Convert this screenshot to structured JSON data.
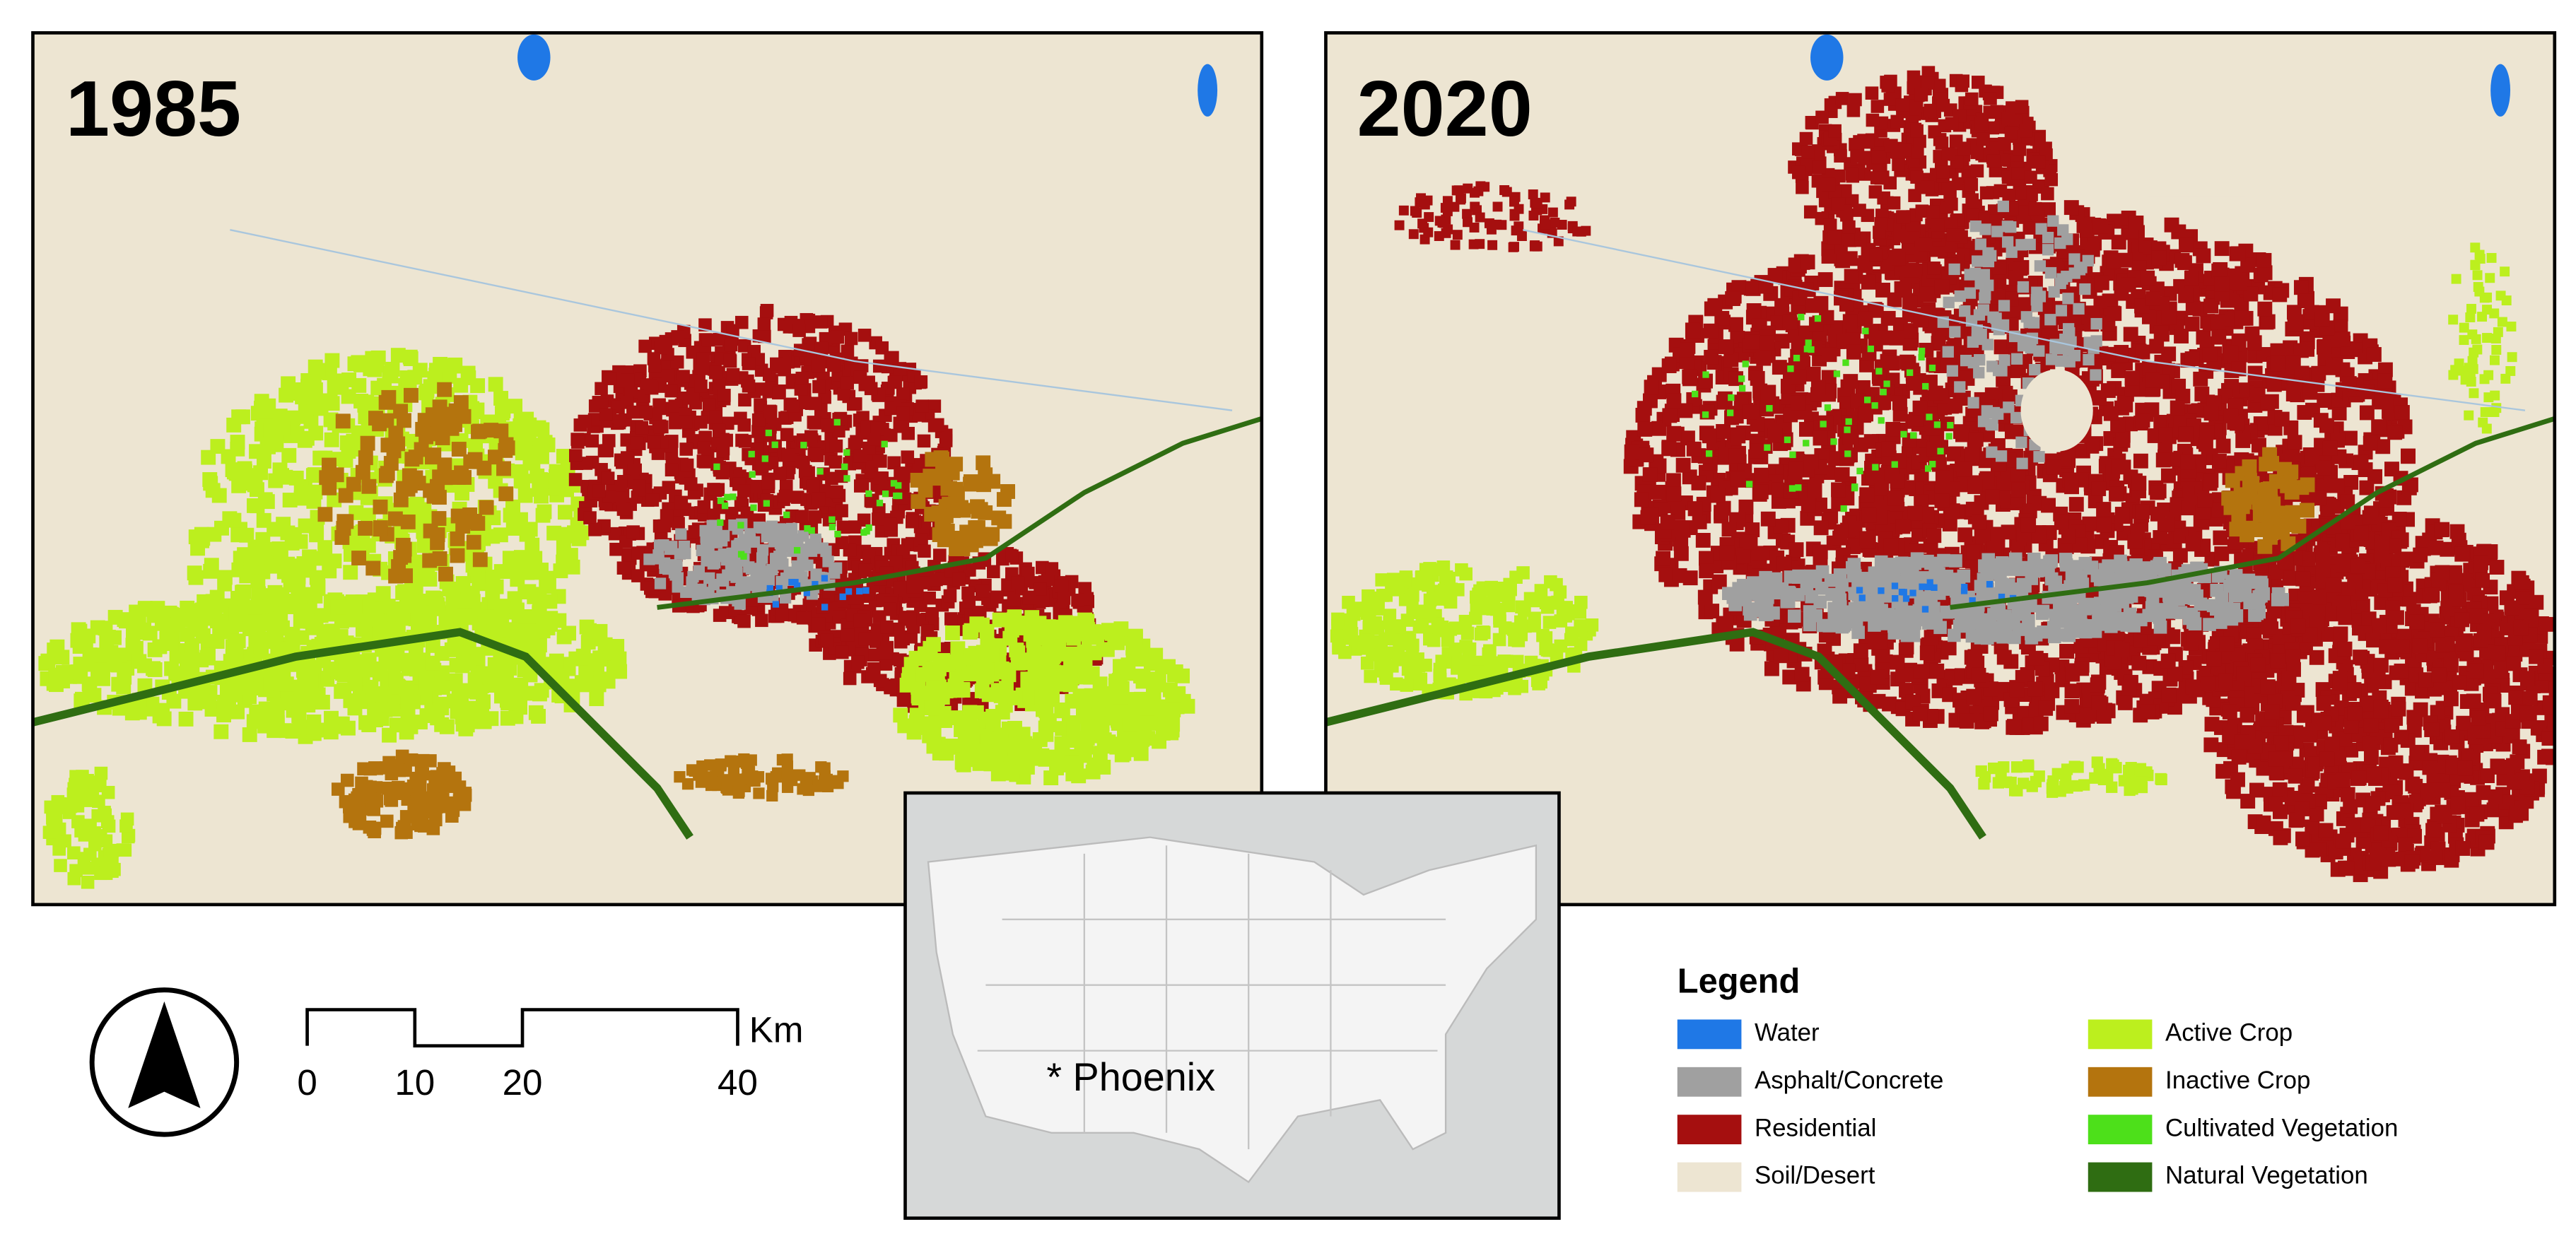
{
  "maps": [
    {
      "title": "1985"
    },
    {
      "title": "2020"
    }
  ],
  "scale_bar": {
    "ticks": [
      0,
      10,
      20,
      40
    ],
    "unit": "Km"
  },
  "inset": {
    "label": "* Phoenix"
  },
  "legend": {
    "title": "Legend",
    "items": [
      {
        "name": "Water",
        "color": "#1f78e6"
      },
      {
        "name": "Asphalt/Concrete",
        "color": "#a0a0a0"
      },
      {
        "name": "Residential",
        "color": "#a50f0f"
      },
      {
        "name": "Soil/Desert",
        "color": "#ede5d2"
      },
      {
        "name": "Active Crop",
        "color": "#bcef1e"
      },
      {
        "name": "Inactive Crop",
        "color": "#b4740e"
      },
      {
        "name": "Cultivated Vegetation",
        "color": "#4de01a"
      },
      {
        "name": "Natural Vegetation",
        "color": "#2f6d12"
      }
    ]
  }
}
